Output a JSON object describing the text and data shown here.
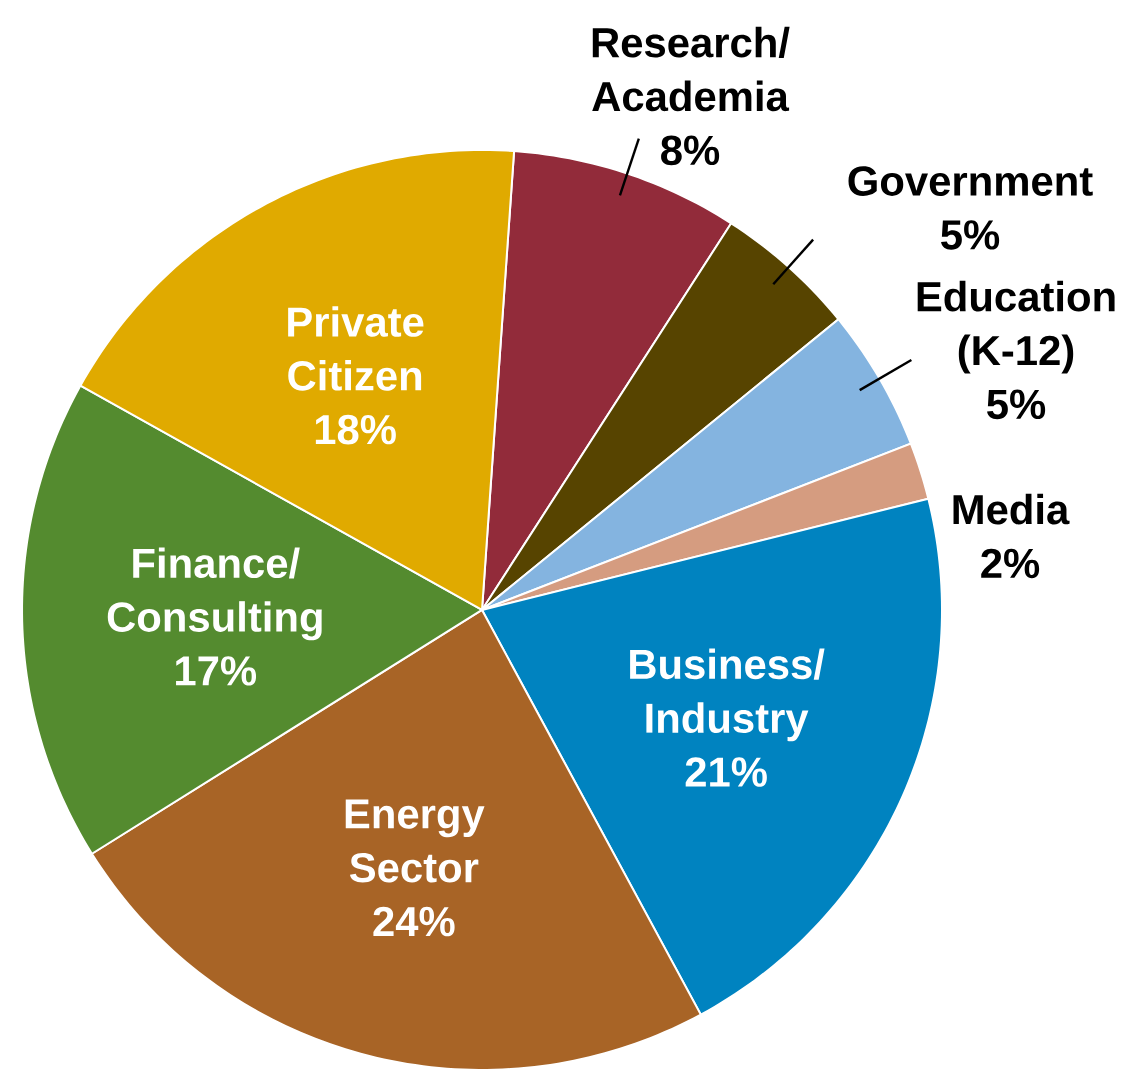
{
  "chart_data": {
    "type": "pie",
    "categories": [
      "Research/ Academia",
      "Government",
      "Education (K-12)",
      "Media",
      "Business/ Industry",
      "Energy Sector",
      "Finance/ Consulting",
      "Private Citizen"
    ],
    "values": [
      8,
      5,
      5,
      2,
      21,
      24,
      17,
      18
    ],
    "value_labels": [
      "8%",
      "5%",
      "5%",
      "2%",
      "21%",
      "24%",
      "17%",
      "18%"
    ],
    "colors": [
      "#922b3a",
      "#574400",
      "#84b4e0",
      "#d59c80",
      "#0083c0",
      "#a86426",
      "#548b2f",
      "#e0aa00"
    ]
  }
}
